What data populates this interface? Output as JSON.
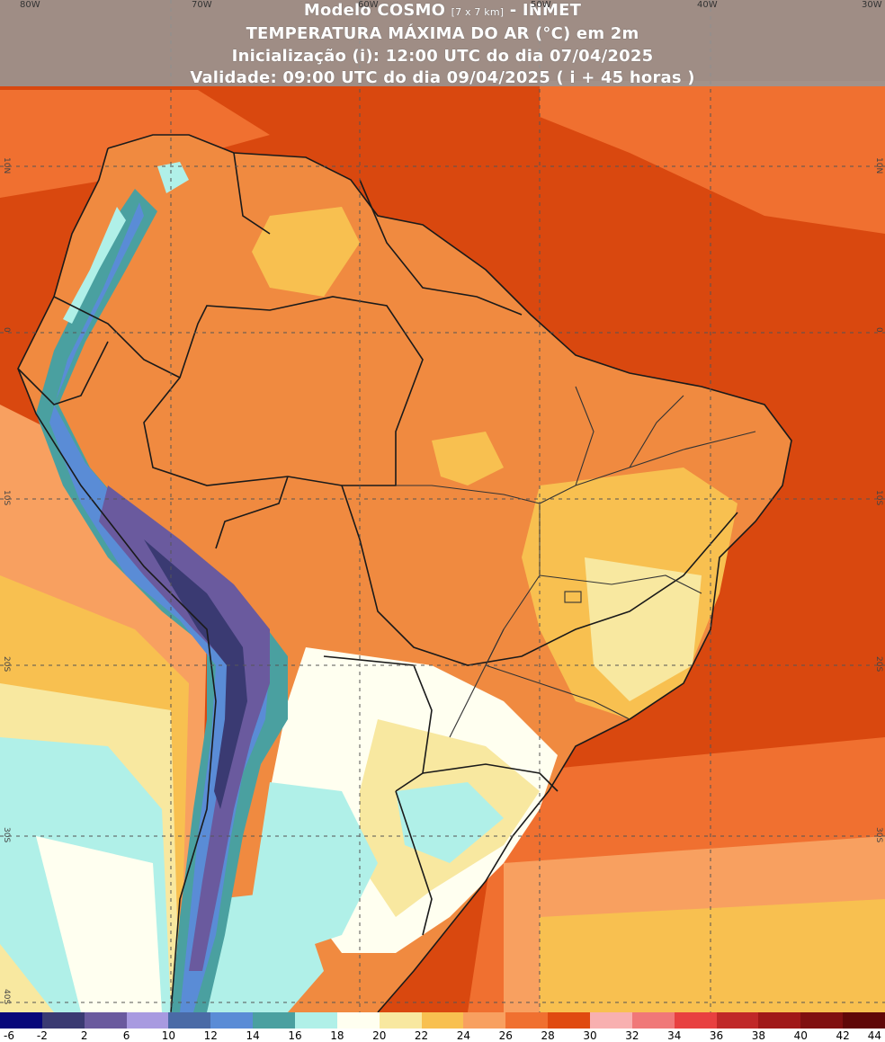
{
  "header": {
    "line1_main": "Modelo COSMO",
    "line1_res": "[7 x 7 km]",
    "line1_tail": "- INMET",
    "line2": "TEMPERATURA MÁXIMA DO AR (°C) em 2m",
    "line3": "Inicialização (i): 12:00 UTC do dia 07/04/2025",
    "line4": "Validade: 09:00 UTC do dia 09/04/2025 ( i + 45 horas )"
  },
  "longitude_labels": [
    "80W",
    "70W",
    "60W",
    "50W",
    "40W",
    "30W"
  ],
  "latitude_labels": [
    "10N",
    "0",
    "10S",
    "20S",
    "30S",
    "40S"
  ],
  "legend": {
    "ticks": [
      "-6",
      "-2",
      "2",
      "6",
      "10",
      "12",
      "14",
      "16",
      "18",
      "20",
      "22",
      "24",
      "26",
      "28",
      "30",
      "32",
      "34",
      "36",
      "38",
      "40",
      "42",
      "44"
    ],
    "colors": [
      "#08087a",
      "#3a3a72",
      "#6a5a9e",
      "#a89ae0",
      "#4a6aa6",
      "#5a8cd6",
      "#4aa0a0",
      "#b0f0e8",
      "#fffff0",
      "#f8e8a0",
      "#f8c050",
      "#f8a060",
      "#f07030",
      "#e04a10",
      "#f8b0b0",
      "#f07878",
      "#e84040",
      "#c02828",
      "#a01818",
      "#801010",
      "#600808"
    ]
  },
  "colors": {
    "ocean_hot": "#d9480f",
    "land_warm": "#f08a40",
    "cold_andes": "#6a5a9e",
    "cool_south": "#b0f0e8",
    "header_bg": "#969696"
  }
}
